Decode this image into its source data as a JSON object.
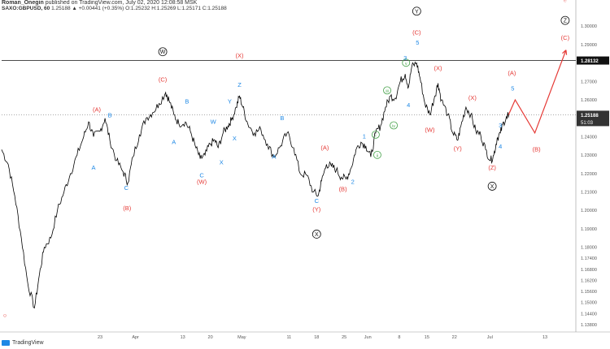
{
  "header": {
    "user": "Roman_Onegin",
    "published": "published on TradingView.com, July 02, 2020 12:08:58 MSK",
    "symbol": "SAXO:GBPUSD, 60",
    "ohlc": "1.25188 ▲ +0.00441 (+0.35%) O:1.25232 H:1.25269 L:1.25171 C:1.25188"
  },
  "footer": {
    "brand": "TradingView"
  },
  "colors": {
    "red": "#e53935",
    "blue": "#1e88e5",
    "green": "#43a047",
    "black": "#111111",
    "price_line": "#000000",
    "grid": "#eeeeee"
  },
  "chart_data": {
    "type": "line",
    "x_axis": {
      "ticks": [
        "23",
        "Apr",
        "13",
        "20",
        "May",
        "11",
        "18",
        "25",
        "Jun",
        "8",
        "15",
        "22",
        "Jul",
        "13"
      ],
      "tick_hours": [
        0,
        216,
        504,
        672,
        864,
        1152,
        1320,
        1488,
        1632,
        1824,
        1992,
        2160,
        2376,
        2712
      ],
      "range_hours": [
        -600,
        2900
      ]
    },
    "y_axis": {
      "range": [
        1.134,
        1.308
      ],
      "ticks": [
        "1.30000",
        "1.29000",
        "1.28000",
        "1.27000",
        "1.26000",
        "1.25000",
        "1.24000",
        "1.23000",
        "1.22000",
        "1.21000",
        "1.20000",
        "1.19000",
        "1.18000",
        "1.17400",
        "1.16800",
        "1.16200",
        "1.15600",
        "1.15000",
        "1.14400",
        "1.13800"
      ],
      "tick_values": [
        1.3,
        1.29,
        1.28,
        1.27,
        1.26,
        1.25,
        1.24,
        1.23,
        1.22,
        1.21,
        1.2,
        1.19,
        1.18,
        1.174,
        1.168,
        1.162,
        1.156,
        1.15,
        1.144,
        1.138
      ]
    },
    "series": [
      {
        "style": "price",
        "points": [
          [
            -600,
            1.233
          ],
          [
            -560,
            1.225
          ],
          [
            -520,
            1.208
          ],
          [
            -480,
            1.185
          ],
          [
            -440,
            1.16
          ],
          [
            -400,
            1.147
          ],
          [
            -370,
            1.165
          ],
          [
            -340,
            1.18
          ],
          [
            -300,
            1.185
          ],
          [
            -260,
            1.2
          ],
          [
            -220,
            1.21
          ],
          [
            -180,
            1.22
          ],
          [
            -140,
            1.23
          ],
          [
            -100,
            1.24
          ],
          [
            -70,
            1.248
          ],
          [
            -40,
            1.24
          ],
          [
            0,
            1.243
          ],
          [
            30,
            1.25
          ],
          [
            60,
            1.238
          ],
          [
            100,
            1.227
          ],
          [
            140,
            1.221
          ],
          [
            170,
            1.215
          ],
          [
            200,
            1.229
          ],
          [
            240,
            1.241
          ],
          [
            280,
            1.25
          ],
          [
            320,
            1.253
          ],
          [
            360,
            1.258
          ],
          [
            400,
            1.264
          ],
          [
            420,
            1.26
          ],
          [
            450,
            1.252
          ],
          [
            480,
            1.247
          ],
          [
            520,
            1.248
          ],
          [
            550,
            1.243
          ],
          [
            580,
            1.235
          ],
          [
            610,
            1.228
          ],
          [
            640,
            1.23
          ],
          [
            670,
            1.236
          ],
          [
            700,
            1.238
          ],
          [
            720,
            1.234
          ],
          [
            750,
            1.242
          ],
          [
            780,
            1.246
          ],
          [
            800,
            1.249
          ],
          [
            830,
            1.256
          ],
          [
            850,
            1.262
          ],
          [
            870,
            1.256
          ],
          [
            900,
            1.247
          ],
          [
            940,
            1.242
          ],
          [
            980,
            1.244
          ],
          [
            1020,
            1.236
          ],
          [
            1060,
            1.229
          ],
          [
            1100,
            1.235
          ],
          [
            1140,
            1.242
          ],
          [
            1180,
            1.234
          ],
          [
            1220,
            1.22
          ],
          [
            1260,
            1.219
          ],
          [
            1300,
            1.21
          ],
          [
            1330,
            1.208
          ],
          [
            1350,
            1.216
          ],
          [
            1380,
            1.225
          ],
          [
            1410,
            1.224
          ],
          [
            1440,
            1.222
          ],
          [
            1470,
            1.218
          ],
          [
            1500,
            1.217
          ],
          [
            1530,
            1.223
          ],
          [
            1560,
            1.233
          ],
          [
            1590,
            1.237
          ],
          [
            1620,
            1.235
          ],
          [
            1650,
            1.229
          ],
          [
            1680,
            1.242
          ],
          [
            1710,
            1.246
          ],
          [
            1740,
            1.256
          ],
          [
            1770,
            1.262
          ],
          [
            1800,
            1.261
          ],
          [
            1830,
            1.27
          ],
          [
            1860,
            1.274
          ],
          [
            1880,
            1.267
          ],
          [
            1900,
            1.278
          ],
          [
            1930,
            1.28
          ],
          [
            1950,
            1.272
          ],
          [
            1980,
            1.258
          ],
          [
            2010,
            1.252
          ],
          [
            2040,
            1.262
          ],
          [
            2060,
            1.269
          ],
          [
            2080,
            1.26
          ],
          [
            2120,
            1.252
          ],
          [
            2150,
            1.242
          ],
          [
            2180,
            1.238
          ],
          [
            2200,
            1.246
          ],
          [
            2230,
            1.256
          ],
          [
            2260,
            1.252
          ],
          [
            2290,
            1.243
          ],
          [
            2320,
            1.241
          ],
          [
            2350,
            1.233
          ],
          [
            2380,
            1.227
          ],
          [
            2400,
            1.23
          ],
          [
            2420,
            1.239
          ],
          [
            2440,
            1.242
          ],
          [
            2460,
            1.248
          ],
          [
            2480,
            1.25
          ],
          [
            2490,
            1.2519
          ]
        ]
      },
      {
        "style": "projection",
        "points": [
          [
            2490,
            1.2519
          ],
          [
            2530,
            1.26
          ],
          [
            2650,
            1.242
          ],
          [
            2840,
            1.287
          ]
        ]
      }
    ],
    "reference_lines": [
      {
        "value": 1.28132,
        "label": "1.28132",
        "style": "solid"
      },
      {
        "value": 1.25188,
        "label": "1.25188",
        "style": "dotted",
        "countdown": "51:03"
      }
    ],
    "annotations": [
      {
        "text": "○",
        "color": "red",
        "h": -580,
        "y": 1.142
      },
      {
        "text": "(A)",
        "color": "red",
        "h": -20,
        "y": 1.2535
      },
      {
        "text": "B",
        "color": "blue",
        "h": 60,
        "y": 1.2505
      },
      {
        "text": "A",
        "color": "blue",
        "h": -40,
        "y": 1.222
      },
      {
        "text": "C",
        "color": "blue",
        "h": 160,
        "y": 1.211
      },
      {
        "text": "(B)",
        "color": "red",
        "h": 165,
        "y": 1.2
      },
      {
        "text": "W",
        "color": "black",
        "circled": true,
        "h": 382,
        "y": 1.285
      },
      {
        "text": "(C)",
        "color": "red",
        "h": 382,
        "y": 1.27
      },
      {
        "text": "B",
        "color": "blue",
        "h": 530,
        "y": 1.258
      },
      {
        "text": "A",
        "color": "blue",
        "h": 450,
        "y": 1.236
      },
      {
        "text": "W",
        "color": "blue",
        "h": 690,
        "y": 1.247
      },
      {
        "text": "Y",
        "color": "blue",
        "h": 790,
        "y": 1.258
      },
      {
        "text": "X",
        "color": "blue",
        "h": 740,
        "y": 1.225
      },
      {
        "text": "C",
        "color": "blue",
        "h": 620,
        "y": 1.218
      },
      {
        "text": "(W)",
        "color": "red",
        "h": 620,
        "y": 1.2145
      },
      {
        "text": "(X)",
        "color": "red",
        "h": 850,
        "y": 1.283
      },
      {
        "text": "Z",
        "color": "blue",
        "h": 850,
        "y": 1.267
      },
      {
        "text": "X",
        "color": "blue",
        "h": 820,
        "y": 1.238
      },
      {
        "text": "B",
        "color": "blue",
        "h": 1110,
        "y": 1.249
      },
      {
        "text": "A",
        "color": "blue",
        "h": 1060,
        "y": 1.228
      },
      {
        "text": "(A)",
        "color": "red",
        "h": 1370,
        "y": 1.233
      },
      {
        "text": "C",
        "color": "blue",
        "h": 1320,
        "y": 1.204
      },
      {
        "text": "(Y)",
        "color": "red",
        "h": 1320,
        "y": 1.1995
      },
      {
        "text": "X",
        "color": "black",
        "circled": true,
        "h": 1320,
        "y": 1.186
      },
      {
        "text": "(B)",
        "color": "red",
        "h": 1480,
        "y": 1.2105
      },
      {
        "text": "1",
        "color": "blue",
        "h": 1610,
        "y": 1.239
      },
      {
        "text": "2",
        "color": "blue",
        "h": 1540,
        "y": 1.2145
      },
      {
        "text": "i",
        "color": "green",
        "circled": true,
        "h": 1680,
        "y": 1.24
      },
      {
        "text": "ii",
        "color": "green",
        "circled": true,
        "h": 1690,
        "y": 1.229
      },
      {
        "text": "iii",
        "color": "green",
        "circled": true,
        "h": 1750,
        "y": 1.264
      },
      {
        "text": "iv",
        "color": "green",
        "circled": true,
        "h": 1790,
        "y": 1.245
      },
      {
        "text": "v",
        "color": "green",
        "circled": true,
        "h": 1865,
        "y": 1.279
      },
      {
        "text": "3",
        "color": "blue",
        "h": 1860,
        "y": 1.2815
      },
      {
        "text": "4",
        "color": "blue",
        "h": 1880,
        "y": 1.256
      },
      {
        "text": "5",
        "color": "blue",
        "h": 1935,
        "y": 1.29
      },
      {
        "text": "Y",
        "color": "black",
        "circled": true,
        "h": 1930,
        "y": 1.307
      },
      {
        "text": "(C)",
        "color": "red",
        "h": 1930,
        "y": 1.2955
      },
      {
        "text": "(X)",
        "color": "red",
        "h": 2060,
        "y": 1.276
      },
      {
        "text": "(W)",
        "color": "red",
        "h": 2010,
        "y": 1.2425
      },
      {
        "text": "(X)",
        "color": "red",
        "h": 2270,
        "y": 1.26
      },
      {
        "text": "(Y)",
        "color": "red",
        "h": 2180,
        "y": 1.2325
      },
      {
        "text": "3",
        "color": "blue",
        "h": 2440,
        "y": 1.245
      },
      {
        "text": "4",
        "color": "blue",
        "h": 2440,
        "y": 1.2335
      },
      {
        "text": "(Z)",
        "color": "red",
        "h": 2390,
        "y": 1.222
      },
      {
        "text": "X",
        "color": "black",
        "circled": true,
        "h": 2390,
        "y": 1.212
      },
      {
        "text": "(A)",
        "color": "red",
        "h": 2510,
        "y": 1.2735
      },
      {
        "text": "5",
        "color": "blue",
        "h": 2515,
        "y": 1.265
      },
      {
        "text": "(B)",
        "color": "red",
        "h": 2660,
        "y": 1.232
      },
      {
        "text": "Z",
        "color": "black",
        "circled": true,
        "h": 2835,
        "y": 1.302
      },
      {
        "text": "(C)",
        "color": "red",
        "h": 2835,
        "y": 1.2925
      },
      {
        "text": "e",
        "color": "red",
        "faint": true,
        "h": 2835,
        "y": 1.313
      }
    ]
  }
}
